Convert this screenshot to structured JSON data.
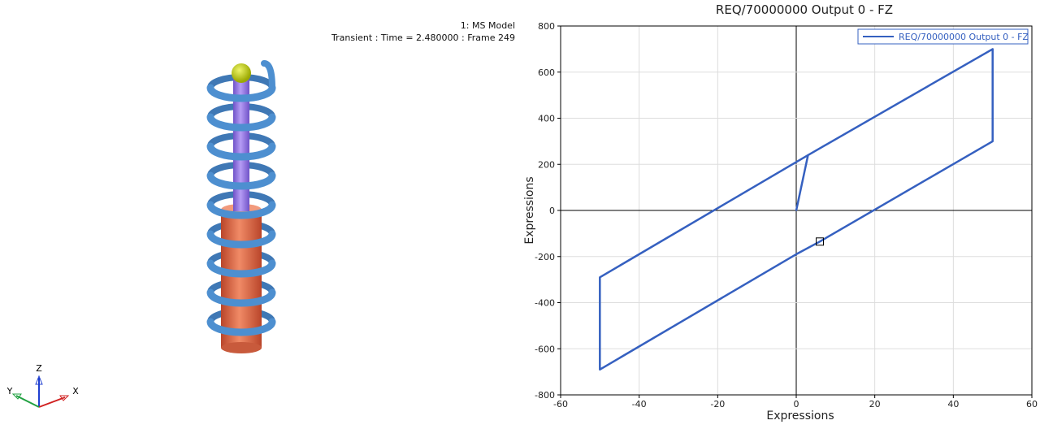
{
  "viewport": {
    "model_name": "1: MS Model",
    "status_line": "Transient : Time = 2.480000 : Frame 249",
    "triad": {
      "z": "Z",
      "y": "Y",
      "x": "X"
    },
    "colors": {
      "spring": "#4d8fd0",
      "piston_rod": "#9a7ae8",
      "cylinder": "#e8734f",
      "ball": "#c5d400"
    }
  },
  "chart_data": {
    "type": "line",
    "title": "REQ/70000000 Output 0 - FZ",
    "xlabel": "Expressions",
    "ylabel": "Expressions",
    "xlim": [
      -60,
      60
    ],
    "ylim": [
      -800,
      800
    ],
    "xticks": [
      "-60",
      "-40",
      "-20",
      "0",
      "20",
      "40",
      "60"
    ],
    "yticks": [
      "800",
      "600",
      "400",
      "200",
      "0",
      "-200",
      "-400",
      "-600",
      "-800"
    ],
    "grid": true,
    "legend_position": "top-right",
    "series": [
      {
        "name": "REQ/70000000 Output 0 - FZ",
        "color": "#3560c0",
        "x": [
          0,
          3,
          50,
          50,
          6,
          0,
          -50,
          -50,
          0,
          3
        ],
        "y": [
          0,
          240,
          700,
          300,
          -135,
          -190,
          -690,
          -290,
          210,
          240
        ]
      }
    ],
    "cursor_marker": {
      "x": 6,
      "y": -135
    }
  }
}
